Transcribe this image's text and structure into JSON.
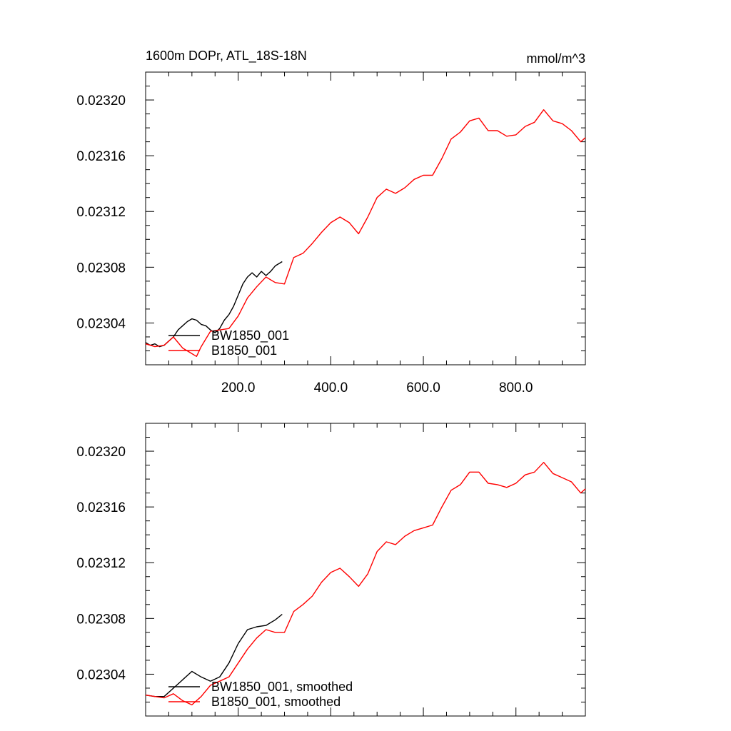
{
  "chart_data": [
    {
      "type": "line",
      "title": "1600m DOPr, ATL_18S-18N",
      "units": "mmol/m^3",
      "xlabel": "",
      "ylabel": "",
      "xlim": [
        0,
        950
      ],
      "ylim": [
        0.02301,
        0.02322
      ],
      "xticks": [
        200,
        400,
        600,
        800
      ],
      "xtick_labels": [
        "200.0",
        "400.0",
        "600.0",
        "800.0"
      ],
      "yticks": [
        0.02304,
        0.02308,
        0.02312,
        0.02316,
        0.0232
      ],
      "ytick_labels": [
        "0.02304",
        "0.02308",
        "0.02312",
        "0.02316",
        "0.02320"
      ],
      "legend_location": "bottom-left",
      "series": [
        {
          "name": "BW1850_001",
          "color": "#000000",
          "x": [
            0,
            10,
            20,
            30,
            40,
            50,
            60,
            70,
            80,
            90,
            100,
            110,
            120,
            130,
            140,
            150,
            160,
            170,
            180,
            190,
            200,
            210,
            220,
            230,
            240,
            250,
            260,
            270,
            280,
            290,
            295
          ],
          "y": [
            0.023026,
            0.023024,
            0.023025,
            0.023023,
            0.023024,
            0.023027,
            0.02303,
            0.023035,
            0.023038,
            0.023041,
            0.023043,
            0.023042,
            0.023039,
            0.023038,
            0.023035,
            0.023033,
            0.023036,
            0.023042,
            0.023046,
            0.023052,
            0.02306,
            0.023068,
            0.023073,
            0.023076,
            0.023073,
            0.023077,
            0.023074,
            0.023077,
            0.023081,
            0.023083,
            0.023084
          ]
        },
        {
          "name": "B1850_001",
          "color": "#ff0000",
          "x": [
            0,
            20,
            40,
            60,
            80,
            100,
            110,
            120,
            140,
            160,
            180,
            200,
            220,
            240,
            260,
            280,
            300,
            320,
            340,
            360,
            380,
            400,
            420,
            440,
            460,
            480,
            500,
            520,
            540,
            560,
            580,
            600,
            620,
            640,
            660,
            680,
            700,
            720,
            740,
            760,
            780,
            800,
            820,
            840,
            860,
            880,
            900,
            920,
            940,
            950
          ],
          "y": [
            0.023025,
            0.023023,
            0.023024,
            0.02303,
            0.023022,
            0.023018,
            0.023016,
            0.023023,
            0.023034,
            0.023035,
            0.023036,
            0.023045,
            0.023058,
            0.023066,
            0.023073,
            0.023069,
            0.023068,
            0.023087,
            0.02309,
            0.023097,
            0.023105,
            0.023112,
            0.023116,
            0.023112,
            0.023104,
            0.023116,
            0.02313,
            0.023136,
            0.023133,
            0.023137,
            0.023143,
            0.023146,
            0.023146,
            0.023158,
            0.023172,
            0.023177,
            0.023185,
            0.023187,
            0.023178,
            0.023178,
            0.023174,
            0.023175,
            0.023181,
            0.023184,
            0.023193,
            0.023185,
            0.023183,
            0.023178,
            0.02317,
            0.023173
          ]
        }
      ]
    },
    {
      "type": "line",
      "title": "",
      "xlabel": "",
      "ylabel": "",
      "xlim": [
        0,
        950
      ],
      "ylim": [
        0.02301,
        0.02322
      ],
      "xticks": [
        200,
        400,
        600,
        800
      ],
      "yticks": [
        0.02304,
        0.02308,
        0.02312,
        0.02316,
        0.0232
      ],
      "ytick_labels": [
        "0.02304",
        "0.02308",
        "0.02312",
        "0.02316",
        "0.02320"
      ],
      "legend_location": "bottom-left",
      "series": [
        {
          "name": "BW1850_001, smoothed",
          "color": "#000000",
          "x": [
            0,
            20,
            40,
            60,
            80,
            100,
            120,
            140,
            160,
            180,
            200,
            220,
            240,
            260,
            280,
            295
          ],
          "y": [
            0.023025,
            0.023024,
            0.023024,
            0.02303,
            0.023036,
            0.023042,
            0.023038,
            0.023035,
            0.023038,
            0.023048,
            0.023062,
            0.023072,
            0.023074,
            0.023075,
            0.023079,
            0.023083
          ]
        },
        {
          "name": "B1850_001, smoothed",
          "color": "#ff0000",
          "x": [
            0,
            20,
            40,
            60,
            80,
            100,
            120,
            140,
            160,
            180,
            200,
            220,
            240,
            260,
            280,
            300,
            320,
            340,
            360,
            380,
            400,
            420,
            440,
            460,
            480,
            500,
            520,
            540,
            560,
            580,
            600,
            620,
            640,
            660,
            680,
            700,
            720,
            740,
            760,
            780,
            800,
            820,
            840,
            860,
            880,
            900,
            920,
            940,
            950
          ],
          "y": [
            0.023025,
            0.023024,
            0.023023,
            0.023026,
            0.023021,
            0.023018,
            0.023024,
            0.023032,
            0.023035,
            0.023038,
            0.023048,
            0.023058,
            0.023066,
            0.023072,
            0.02307,
            0.02307,
            0.023085,
            0.02309,
            0.023096,
            0.023106,
            0.023113,
            0.023116,
            0.02311,
            0.023103,
            0.023112,
            0.023128,
            0.023135,
            0.023133,
            0.023139,
            0.023143,
            0.023145,
            0.023147,
            0.02316,
            0.023172,
            0.023176,
            0.023185,
            0.023185,
            0.023177,
            0.023176,
            0.023174,
            0.023177,
            0.023183,
            0.023185,
            0.023192,
            0.023184,
            0.023181,
            0.023178,
            0.02317,
            0.023173
          ]
        }
      ]
    }
  ]
}
